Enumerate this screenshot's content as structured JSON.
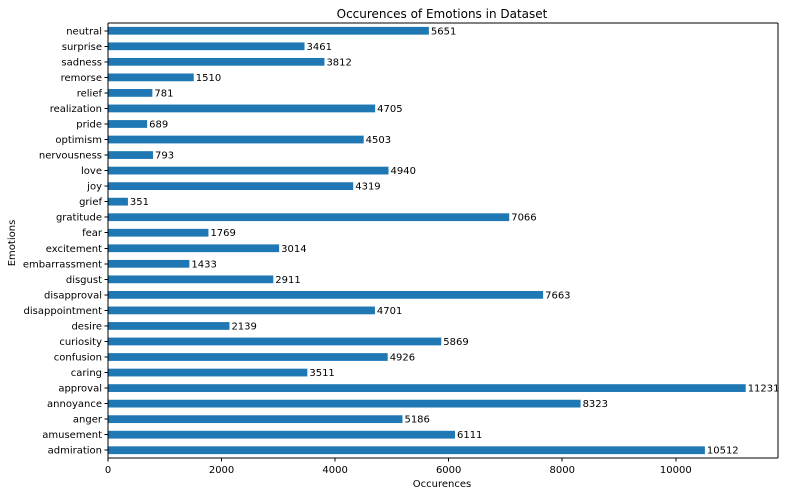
{
  "chart_data": {
    "type": "bar",
    "orientation": "horizontal",
    "title": "Occurences of Emotions in Dataset",
    "xlabel": "Occurences",
    "ylabel": "Emotions",
    "xlim": [
      0,
      11800
    ],
    "xticks": [
      0,
      2000,
      4000,
      6000,
      8000,
      10000
    ],
    "grid": false,
    "legend": "none",
    "bar_color": "#1f77b4",
    "categories": [
      "admiration",
      "amusement",
      "anger",
      "annoyance",
      "approval",
      "caring",
      "confusion",
      "curiosity",
      "desire",
      "disappointment",
      "disapproval",
      "disgust",
      "embarrassment",
      "excitement",
      "fear",
      "gratitude",
      "grief",
      "joy",
      "love",
      "nervousness",
      "optimism",
      "pride",
      "realization",
      "relief",
      "remorse",
      "sadness",
      "surprise",
      "neutral"
    ],
    "values": [
      10512,
      6111,
      5186,
      8323,
      11231,
      3511,
      4926,
      5869,
      2139,
      4701,
      7663,
      2911,
      1433,
      3014,
      1769,
      7066,
      351,
      4319,
      4940,
      793,
      4503,
      689,
      4705,
      781,
      1510,
      3812,
      3461,
      5651
    ]
  }
}
